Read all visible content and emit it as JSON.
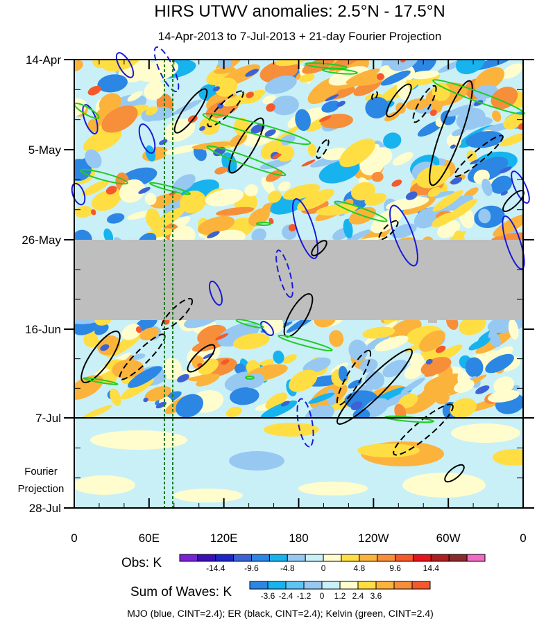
{
  "chart_data": {
    "type": "heatmap",
    "title": "HIRS UTWV anomalies: 2.5°N - 17.5°N",
    "subtitle": "14-Apr-2013 to 7-Jul-2013 + 21-day Fourier Projection",
    "x_ticks": [
      "0",
      "60E",
      "120E",
      "180",
      "120W",
      "60W",
      "0"
    ],
    "y_ticks": [
      "14-Apr",
      "5-May",
      "26-May",
      "16-Jun",
      "7-Jul",
      "28-Jul"
    ],
    "projection_label_line1": "Fourier",
    "projection_label_line2": "Projection",
    "obs_scale": {
      "label": "Obs: K",
      "tick_labels": [
        "-14.4",
        "-9.6",
        "-4.8",
        "0",
        "4.8",
        "9.6",
        "14.4"
      ],
      "colors": [
        "#7a22d6",
        "#3a0fb8",
        "#1d25c9",
        "#3c63d6",
        "#2c86e3",
        "#17b3ef",
        "#96c8f1",
        "#c9f0f7",
        "#fffdcd",
        "#ffde44",
        "#fbb33c",
        "#f68e3a",
        "#f5592b",
        "#e8131b",
        "#ad1e22",
        "#8b2a2e",
        "#f06bc4"
      ]
    },
    "waves_scale": {
      "label": "Sum of Waves: K",
      "tick_labels": [
        "-3.6",
        "-2.4",
        "-1.2",
        "0",
        "1.2",
        "2.4",
        "3.6"
      ],
      "colors": [
        "#2c86e3",
        "#17b3ef",
        "#5fc4f2",
        "#96c8f1",
        "#c9f0f7",
        "#fffdcd",
        "#ffde44",
        "#fbb33c",
        "#f68e3a",
        "#f5592b"
      ]
    },
    "footnote": "MJO (blue, CINT=2.4); ER (black, CINT=2.4); Kelvin (green, CINT=2.4)",
    "missing_band": {
      "start": "26-May",
      "end": "~13-Jun",
      "color": "#bebebe"
    },
    "reference_lines": [
      {
        "lon": "~72E",
        "style": "dashed",
        "color": "#1e7a1e"
      },
      {
        "lon": "~79E",
        "style": "dashed",
        "color": "#1e7a1e"
      }
    ],
    "separator_date": "7-Jul",
    "contour_series": [
      {
        "name": "MJO",
        "color": "#1a1ad6"
      },
      {
        "name": "ER",
        "color": "#000000"
      },
      {
        "name": "Kelvin",
        "color": "#22cc22"
      }
    ]
  }
}
